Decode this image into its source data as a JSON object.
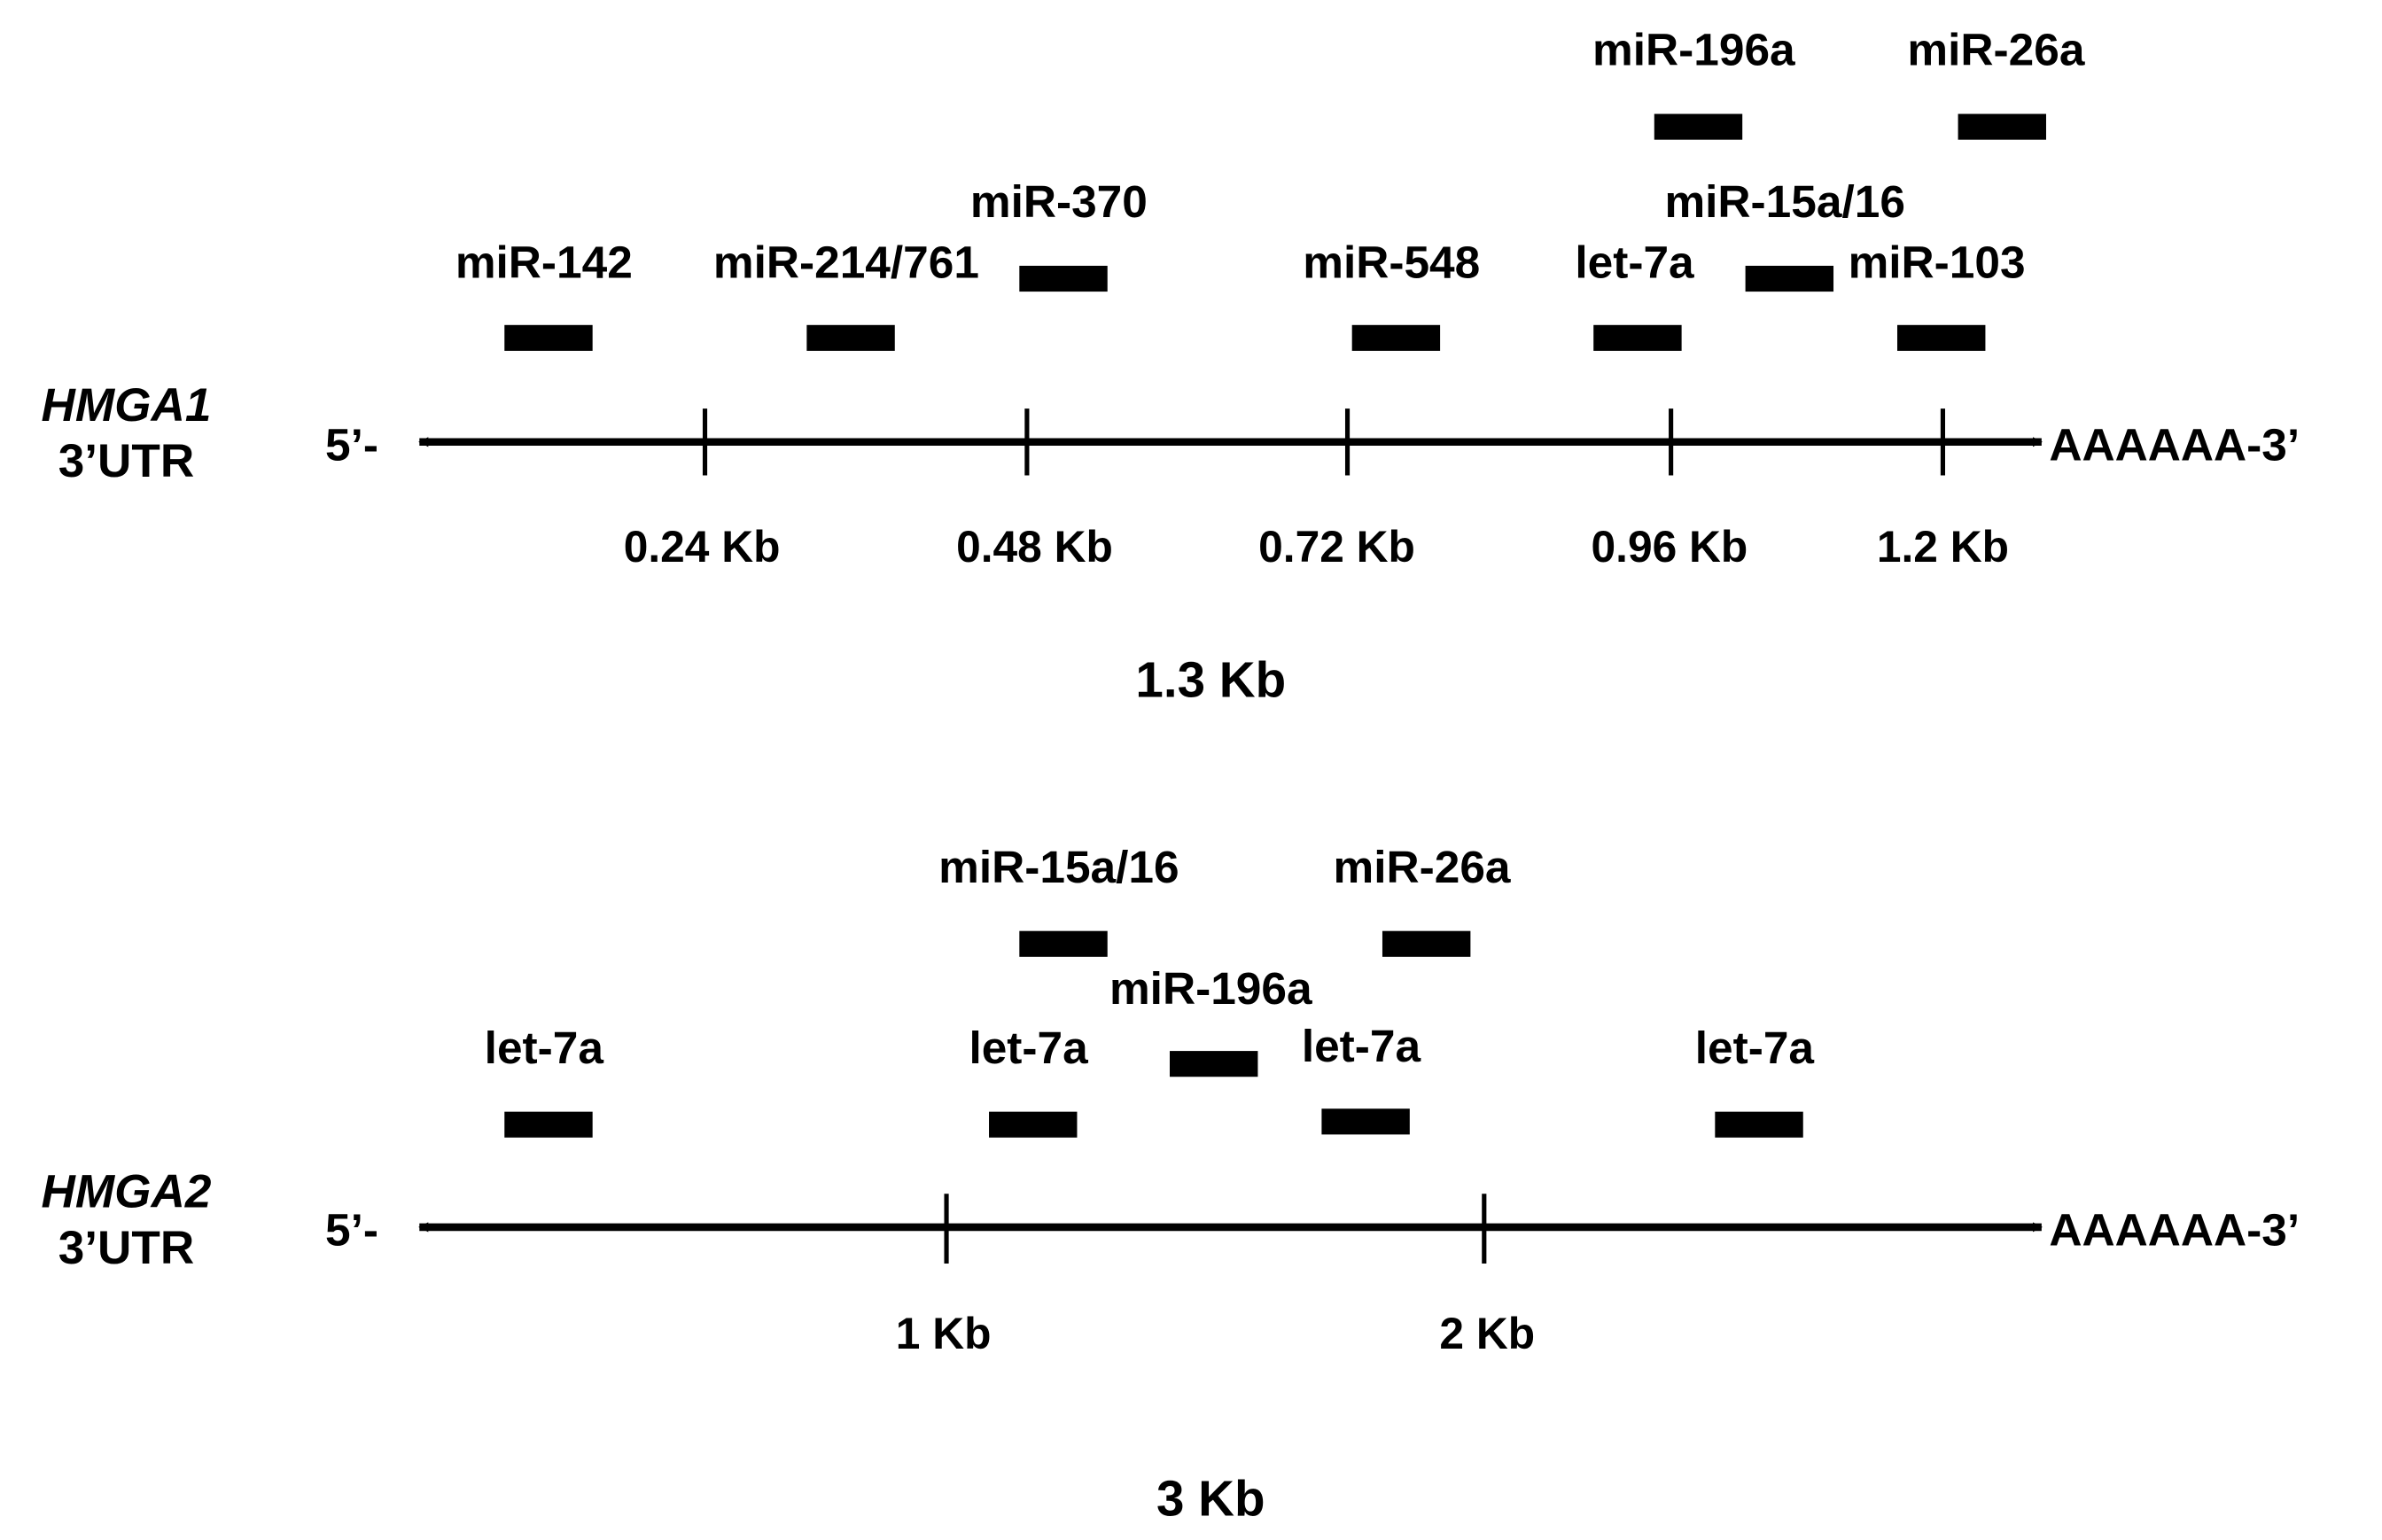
{
  "panels": [
    {
      "gene": "HMGA1",
      "utr_label": "3’UTR",
      "five_prime": "5’-",
      "three_prime": "AAAAAA-3’",
      "total_length": "1.3 Kb",
      "ticks": [
        "0.24 Kb",
        "0.48 Kb",
        "0.72 Kb",
        "0.96 Kb",
        "1.2 Kb"
      ],
      "sites": [
        {
          "label": "miR-142",
          "row": 1
        },
        {
          "label": "miR-214/761",
          "row": 1
        },
        {
          "label": "miR-370",
          "row": 2
        },
        {
          "label": "miR-548",
          "row": 1
        },
        {
          "label": "let-7a",
          "row": 1
        },
        {
          "label": "miR-15a/16",
          "row": 2
        },
        {
          "label": "miR-103",
          "row": 1
        },
        {
          "label": "miR-196a",
          "row": 3
        },
        {
          "label": "miR-26a",
          "row": 3
        }
      ]
    },
    {
      "gene": "HMGA2",
      "utr_label": "3’UTR",
      "five_prime": "5’-",
      "three_prime": "AAAAAA-3’",
      "total_length": "3 Kb",
      "ticks": [
        "1 Kb",
        "2 Kb"
      ],
      "sites": [
        {
          "label": "let-7a",
          "row": 1
        },
        {
          "label": "let-7a",
          "row": 1
        },
        {
          "label": "miR-15a/16",
          "row": 3
        },
        {
          "label": "miR-196a",
          "row": 2
        },
        {
          "label": "let-7a",
          "row": 1
        },
        {
          "label": "miR-26a",
          "row": 3
        },
        {
          "label": "let-7a",
          "row": 1
        }
      ]
    }
  ]
}
